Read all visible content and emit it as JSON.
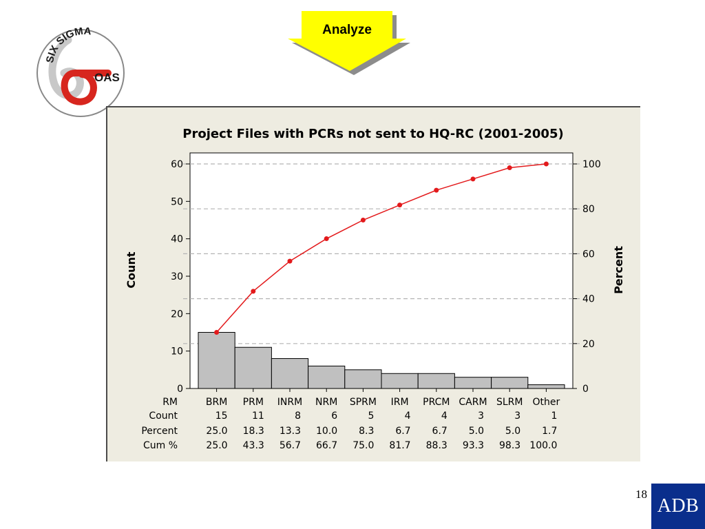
{
  "logo": {
    "text_top": "SIX SIGMA",
    "text_side": "OAS"
  },
  "stage_arrow": {
    "label": "Analyze",
    "fill": "#ffff00",
    "shadow": "#8c8c8c"
  },
  "chart_data": {
    "type": "pareto",
    "title": "Project Files with PCRs not sent to HQ-RC (2001-2005)",
    "ylabel_left": "Count",
    "ylabel_right": "Percent",
    "ylim_left": [
      0,
      60
    ],
    "yticks_left": [
      0,
      10,
      20,
      30,
      40,
      50,
      60
    ],
    "ylim_right": [
      0,
      100
    ],
    "yticks_right": [
      0,
      20,
      40,
      60,
      80,
      100
    ],
    "grid_percent_lines": [
      20,
      40,
      60,
      80,
      100
    ],
    "categories": [
      "BRM",
      "PRM",
      "INRM",
      "NRM",
      "SPRM",
      "IRM",
      "PRCM",
      "CARM",
      "SLRM",
      "Other"
    ],
    "counts": [
      15,
      11,
      8,
      6,
      5,
      4,
      4,
      3,
      3,
      1
    ],
    "cum_percent": [
      25.0,
      43.3,
      56.7,
      66.7,
      75.0,
      81.7,
      88.3,
      93.3,
      98.3,
      100.0
    ],
    "table": {
      "row_labels": [
        "RM",
        "Count",
        "Percent",
        "Cum %"
      ],
      "count": [
        "15",
        "11",
        "8",
        "6",
        "5",
        "4",
        "4",
        "3",
        "3",
        "1"
      ],
      "percent": [
        "25.0",
        "18.3",
        "13.3",
        "10.0",
        "8.3",
        "6.7",
        "6.7",
        "5.0",
        "5.0",
        "1.7"
      ],
      "cum": [
        "25.0",
        "43.3",
        "56.7",
        "66.7",
        "75.0",
        "81.7",
        "88.3",
        "93.3",
        "98.3",
        "100.0"
      ]
    },
    "colors": {
      "bar": "#c0c0c0",
      "line": "#e31a1c",
      "grid": "#b4b4b4",
      "panel": "#eeece1"
    }
  },
  "footer": {
    "page_number": "18",
    "brand": "ADB",
    "brand_color": "#0a2e8c"
  }
}
